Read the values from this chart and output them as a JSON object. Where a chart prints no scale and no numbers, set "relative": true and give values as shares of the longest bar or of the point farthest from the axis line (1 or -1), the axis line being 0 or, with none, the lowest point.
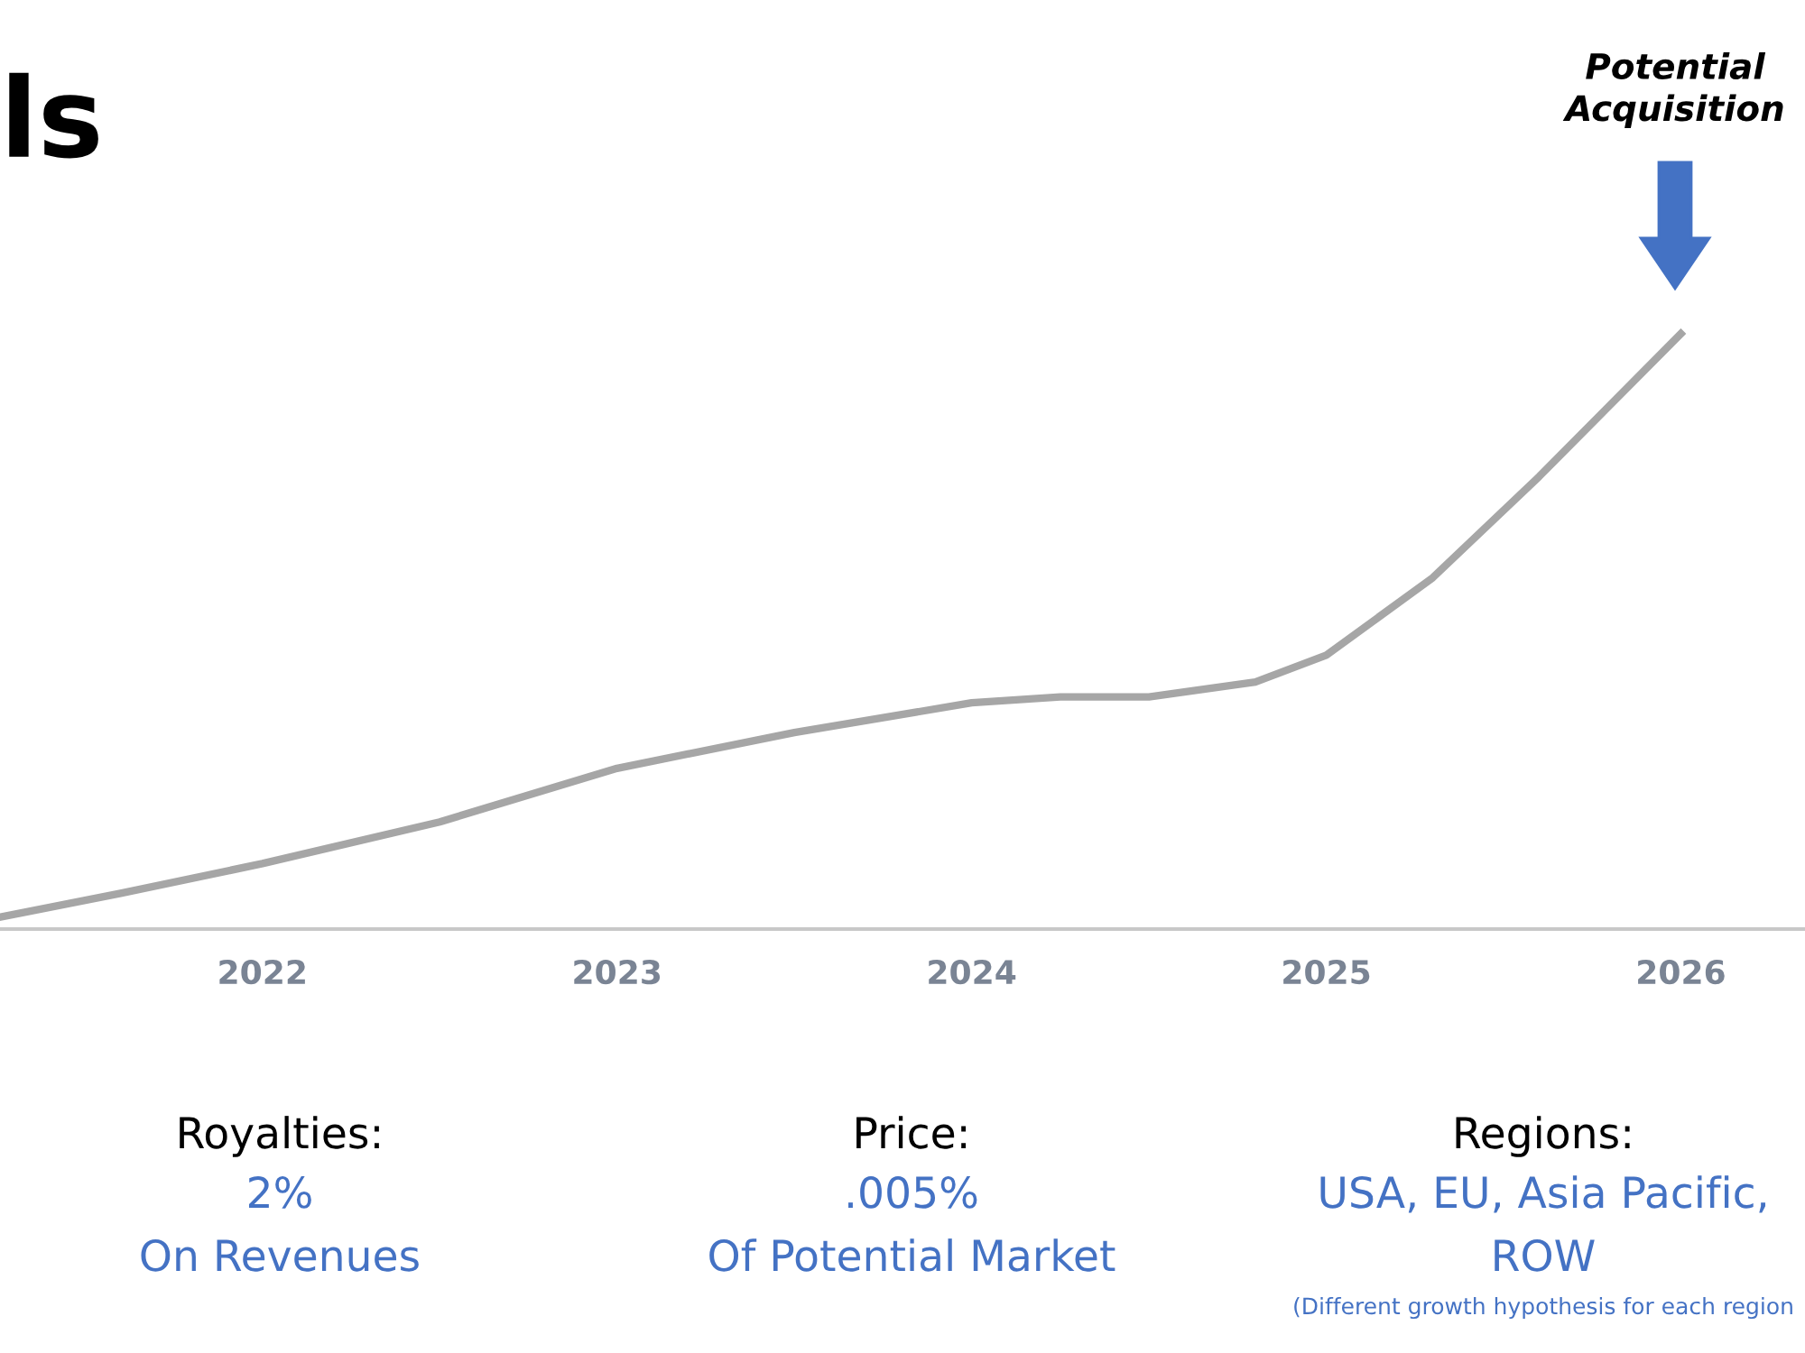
{
  "chart_data": {
    "type": "line",
    "title": "ls",
    "relative": true,
    "x": [
      2021.26,
      2021.6,
      2022,
      2022.5,
      2023,
      2023.5,
      2024,
      2024.25,
      2024.5,
      2024.8,
      2025,
      2025.3,
      2025.6,
      2026
    ],
    "xlim": [
      2021.26,
      2026.35
    ],
    "xticks": [
      2022,
      2023,
      2024,
      2025,
      2026
    ],
    "series": [
      {
        "color": "#a6a6a6",
        "values": [
          0.02,
          0.06,
          0.11,
          0.18,
          0.27,
          0.33,
          0.38,
          0.39,
          0.39,
          0.415,
          0.46,
          0.59,
          0.76,
          1
        ]
      }
    ],
    "grid": false,
    "marker": "none",
    "line_style": "solid",
    "annotations": [
      "Potential\nAcquisition",
      "Royalties:",
      "2%",
      "On Revenues",
      "Price:",
      ".005%",
      "Of Potential Market",
      "Regions:",
      "USA, EU, Asia Pacific,",
      "ROW",
      "(Different growth hypothesis for each region"
    ]
  }
}
